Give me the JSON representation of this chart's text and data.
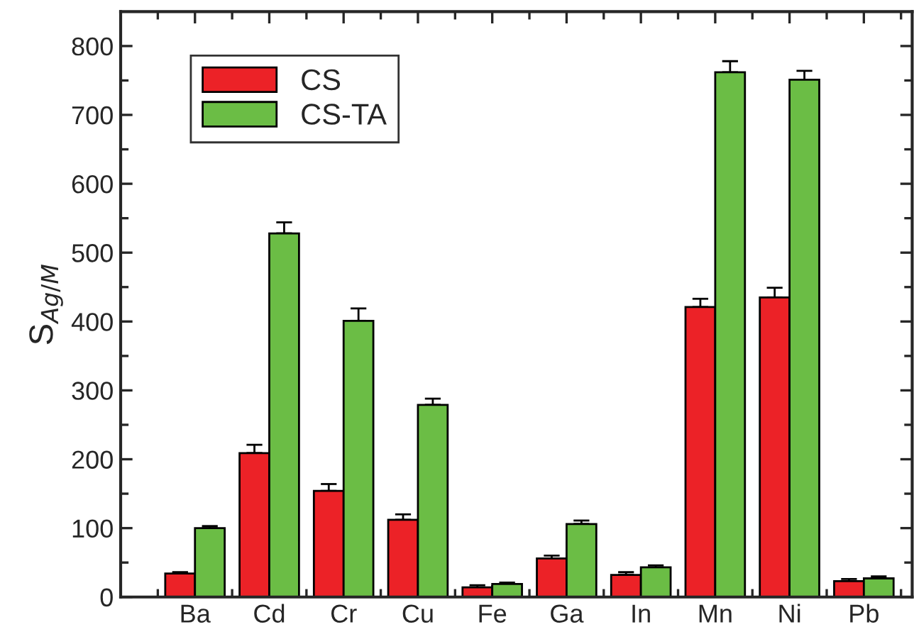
{
  "chart_data": {
    "type": "bar",
    "ylabel": "S$_{Ag/M}$",
    "categories": [
      "Ba",
      "Cd",
      "Cr",
      "Cu",
      "Fe",
      "Ga",
      "In",
      "Mn",
      "Ni",
      "Pb"
    ],
    "series": [
      {
        "name": "CS",
        "color": "#ec2227",
        "values": [
          34,
          209,
          154,
          112,
          14,
          56,
          32,
          421,
          435,
          23
        ],
        "errors": [
          [
            34,
            36
          ],
          [
            209,
            221
          ],
          [
            154,
            164
          ],
          [
            112,
            120
          ],
          [
            14,
            17
          ],
          [
            56,
            60
          ],
          [
            32,
            36
          ],
          [
            421,
            433
          ],
          [
            435,
            449
          ],
          [
            23,
            26
          ]
        ]
      },
      {
        "name": "CS-TA",
        "color": "#6bbd45",
        "values": [
          100,
          528,
          401,
          279,
          19,
          106,
          43,
          762,
          751,
          27
        ],
        "errors": [
          [
            100,
            103
          ],
          [
            528,
            544
          ],
          [
            401,
            419
          ],
          [
            279,
            288
          ],
          [
            19,
            21
          ],
          [
            106,
            111
          ],
          [
            43,
            46
          ],
          [
            762,
            778
          ],
          [
            751,
            764
          ],
          [
            27,
            30
          ]
        ]
      }
    ],
    "ylim": [
      0,
      850
    ],
    "yticks": [
      0,
      100,
      200,
      300,
      400,
      500,
      600,
      700,
      800
    ],
    "grid": false,
    "legend": "top left"
  }
}
